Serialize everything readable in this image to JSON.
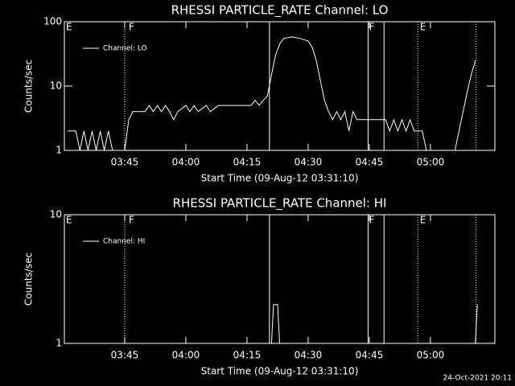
{
  "chart_data": [
    {
      "type": "line",
      "title": "RHESSI PARTICLE_RATE Channel: LO",
      "y_label": "Counts/sec",
      "x_label": "Start Time (09-Aug-12 03:31:10)",
      "log_y": true,
      "legend": "upper left",
      "xlim": [
        210.2,
        315.8
      ],
      "xticks": [
        {
          "value": 225,
          "label": "03:45"
        },
        {
          "value": 240,
          "label": "04:00"
        },
        {
          "value": 255,
          "label": "04:15"
        },
        {
          "value": 270,
          "label": "04:30"
        },
        {
          "value": 285,
          "label": "04:45"
        },
        {
          "value": 300,
          "label": "05:00"
        }
      ],
      "ylim": [
        1,
        100
      ],
      "yticks": [
        1,
        10,
        100
      ],
      "series": [
        {
          "name": "Channel: LO",
          "color": "#ffffff",
          "x": [
            211,
            213,
            214,
            215,
            216,
            217,
            218,
            219,
            220,
            221,
            222,
            223,
            224,
            225,
            226,
            227,
            230,
            231,
            232,
            233,
            234,
            235,
            236,
            237,
            238,
            240,
            241,
            242,
            243,
            245,
            246,
            248,
            250,
            252,
            254,
            256,
            257,
            258,
            259,
            260,
            261,
            262,
            263,
            264,
            266,
            268,
            270,
            271,
            272,
            273,
            274,
            275,
            276,
            277,
            278,
            279,
            280,
            281,
            282,
            283,
            284,
            285,
            286,
            287,
            288,
            289,
            290,
            291,
            292,
            293,
            294,
            295,
            296,
            297,
            298,
            299,
            300,
            301,
            302,
            303,
            304,
            305,
            306,
            307,
            308,
            309,
            310,
            311
          ],
          "values": [
            2,
            2,
            1,
            2,
            1,
            2,
            1,
            2,
            1,
            2,
            1,
            1,
            1,
            1,
            3,
            4,
            4,
            5,
            4,
            5,
            4,
            5,
            4,
            3,
            4,
            5,
            4,
            5,
            4,
            5,
            4,
            5,
            5,
            5,
            5,
            5,
            6,
            5,
            6,
            7,
            15,
            30,
            45,
            55,
            58,
            55,
            50,
            40,
            25,
            12,
            6,
            4,
            3,
            4,
            3,
            4,
            2,
            4,
            3,
            3,
            3,
            3,
            3,
            3,
            3,
            3,
            2,
            3,
            2,
            3,
            2,
            3,
            2,
            2,
            2,
            1,
            1,
            1,
            1,
            1,
            1,
            1,
            1,
            2,
            4,
            8,
            15,
            25
          ]
        }
      ],
      "lines": [
        {
          "x": 225,
          "style": "dotted"
        },
        {
          "x": 260.5,
          "style": "solid"
        },
        {
          "x": 284.7,
          "style": "solid"
        },
        {
          "x": 288.6,
          "style": "solid"
        },
        {
          "x": 296.9,
          "style": "dotted"
        },
        {
          "x": 311.2,
          "style": "dotted"
        }
      ],
      "annotations": [
        {
          "x": 210.6,
          "label": "E"
        },
        {
          "x": 226,
          "label": "F"
        },
        {
          "x": 284.9,
          "label": "F"
        },
        {
          "x": 297.4,
          "label": "E"
        }
      ]
    },
    {
      "type": "line",
      "title": "RHESSI PARTICLE_RATE Channel: HI",
      "y_label": "Counts/sec",
      "x_label": "Start Time (09-Aug-12 03:31:10)",
      "log_y": true,
      "legend": "upper left",
      "xlim": [
        210.2,
        315.8
      ],
      "xticks": [
        {
          "value": 225,
          "label": "03:45"
        },
        {
          "value": 240,
          "label": "04:00"
        },
        {
          "value": 255,
          "label": "04:15"
        },
        {
          "value": 270,
          "label": "04:30"
        },
        {
          "value": 285,
          "label": "04:45"
        },
        {
          "value": 300,
          "label": "05:00"
        }
      ],
      "ylim": [
        1,
        10
      ],
      "yticks": [
        1,
        10
      ],
      "series": [
        {
          "name": "Channel: HI",
          "color": "#ffffff",
          "x": [
            211,
            261,
            261.5,
            262.5,
            263,
            311,
            311.5
          ],
          "values": [
            1,
            1,
            2,
            2,
            1,
            1,
            2
          ]
        }
      ],
      "lines": [
        {
          "x": 225,
          "style": "dotted"
        },
        {
          "x": 260.5,
          "style": "solid"
        },
        {
          "x": 284.7,
          "style": "solid"
        },
        {
          "x": 288.6,
          "style": "solid"
        },
        {
          "x": 296.9,
          "style": "dotted"
        },
        {
          "x": 311.2,
          "style": "dotted"
        }
      ],
      "annotations": [
        {
          "x": 210.6,
          "label": "E"
        },
        {
          "x": 226,
          "label": "F"
        },
        {
          "x": 284.9,
          "label": "F"
        },
        {
          "x": 297.4,
          "label": "E"
        }
      ]
    }
  ],
  "footer": "24-Oct-2021 20:11"
}
